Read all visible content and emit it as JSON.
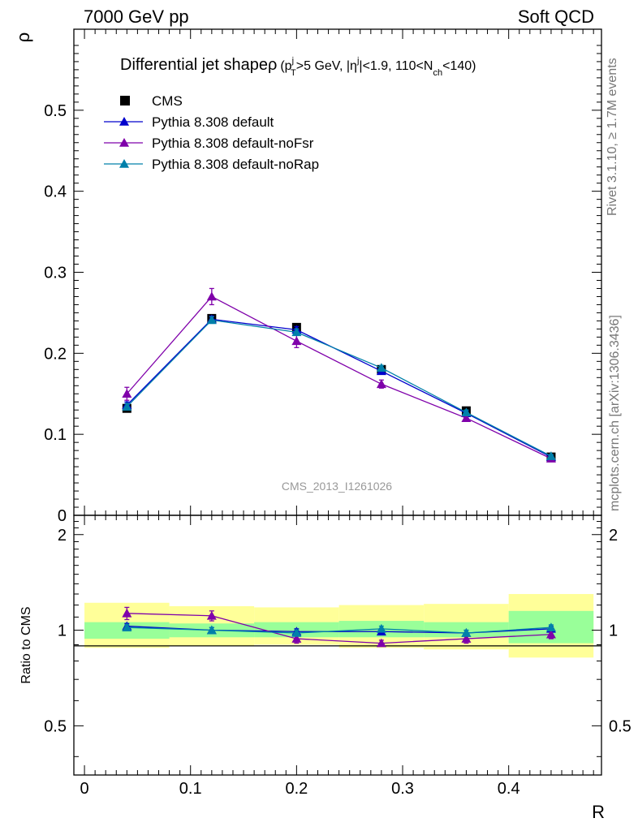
{
  "header": {
    "left": "7000 GeV pp",
    "right": "Soft QCD"
  },
  "side": {
    "rivet": "Rivet 3.1.10, ≥ 1.7M events",
    "mcplots": "mcplots.cern.ch [arXiv:1306.3436]"
  },
  "watermark": "CMS_2013_I1261026",
  "title_parts": {
    "main": "Differential jet shapeρ",
    "suffix": "(p",
    "pt_sup": "j",
    "pt_sub": "T",
    "mid1": ">5 GeV, |η",
    "eta_sup": "j",
    "mid2": "|<1.9, 110<N",
    "n_sub": "ch",
    "end": "<140)"
  },
  "colors": {
    "cms": "#000000",
    "default": "#0000cc",
    "noFsr": "#7f00aa",
    "noRap": "#0080aa",
    "band_outer": "#ffff99",
    "band_inner": "#99ff99"
  },
  "chart_data": [
    {
      "type": "line",
      "panel": "main",
      "ylabel": "ρ",
      "ylim": [
        0,
        0.6
      ],
      "yticks": [
        0,
        0.1,
        0.2,
        0.3,
        0.4,
        0.5
      ],
      "ytick_labels": [
        "0",
        "0.1",
        "0.2",
        "0.3",
        "0.4",
        "0.5"
      ],
      "legend_position": "top-left",
      "x": [
        0.04,
        0.12,
        0.2,
        0.28,
        0.36,
        0.44
      ],
      "series": [
        {
          "name": "CMS",
          "style": "square",
          "color_key": "cms",
          "values": [
            0.132,
            0.243,
            0.232,
            0.18,
            0.129,
            0.072
          ],
          "errors": [
            0.004,
            0.004,
            0.004,
            0.003,
            0.003,
            0.002
          ]
        },
        {
          "name": "Pythia 8.308 default",
          "style": "triangle",
          "color_key": "default",
          "values": [
            0.136,
            0.242,
            0.229,
            0.178,
            0.126,
            0.072
          ],
          "errors": [
            0.004,
            0.004,
            0.004,
            0.003,
            0.003,
            0.002
          ]
        },
        {
          "name": "Pythia 8.308 default-noFsr",
          "style": "triangle",
          "color_key": "noFsr",
          "values": [
            0.15,
            0.27,
            0.215,
            0.162,
            0.12,
            0.07
          ],
          "errors": [
            0.008,
            0.01,
            0.008,
            0.005,
            0.004,
            0.003
          ]
        },
        {
          "name": "Pythia 8.308 default-noRap",
          "style": "triangle",
          "color_key": "noRap",
          "values": [
            0.134,
            0.241,
            0.226,
            0.182,
            0.127,
            0.073
          ],
          "errors": [
            0.004,
            0.004,
            0.004,
            0.003,
            0.003,
            0.002
          ]
        }
      ]
    },
    {
      "type": "line",
      "panel": "ratio",
      "ylabel": "Ratio to CMS",
      "xlabel": "R",
      "xlim": [
        -0.01,
        0.4875
      ],
      "ylim": [
        0.35,
        2.3
      ],
      "yticks": [
        0.5,
        1,
        2
      ],
      "ytick_labels": [
        "0.5",
        "1",
        "2"
      ],
      "xticks": [
        0,
        0.1,
        0.2,
        0.3,
        0.4
      ],
      "xtick_labels": [
        "0",
        "0.1",
        "0.2",
        "0.3",
        "0.4"
      ],
      "bins": [
        [
          0,
          0.08
        ],
        [
          0.08,
          0.16
        ],
        [
          0.16,
          0.24
        ],
        [
          0.24,
          0.32
        ],
        [
          0.32,
          0.4
        ],
        [
          0.4,
          0.48
        ]
      ],
      "band_outer": [
        [
          0.88,
          1.22
        ],
        [
          0.89,
          1.19
        ],
        [
          0.9,
          1.18
        ],
        [
          0.88,
          1.2
        ],
        [
          0.87,
          1.21
        ],
        [
          0.82,
          1.3
        ]
      ],
      "band_inner": [
        [
          0.94,
          1.06
        ],
        [
          0.95,
          1.05
        ],
        [
          0.95,
          1.06
        ],
        [
          0.95,
          1.07
        ],
        [
          0.95,
          1.06
        ],
        [
          0.91,
          1.15
        ]
      ],
      "x": [
        0.04,
        0.12,
        0.2,
        0.28,
        0.36,
        0.44
      ],
      "series": [
        {
          "name": "Pythia 8.308 default",
          "color_key": "default",
          "values": [
            1.03,
            1.0,
            0.99,
            0.99,
            0.98,
            1.01
          ],
          "errors": [
            0.02,
            0.02,
            0.02,
            0.02,
            0.02,
            0.02
          ]
        },
        {
          "name": "Pythia 8.308 default-noFsr",
          "color_key": "noFsr",
          "values": [
            1.13,
            1.11,
            0.94,
            0.91,
            0.94,
            0.97
          ],
          "errors": [
            0.05,
            0.04,
            0.03,
            0.02,
            0.03,
            0.03
          ]
        },
        {
          "name": "Pythia 8.308 default-noRap",
          "color_key": "noRap",
          "values": [
            1.02,
            1.0,
            0.98,
            1.01,
            0.98,
            1.02
          ],
          "errors": [
            0.02,
            0.02,
            0.02,
            0.02,
            0.02,
            0.02
          ]
        }
      ]
    }
  ]
}
